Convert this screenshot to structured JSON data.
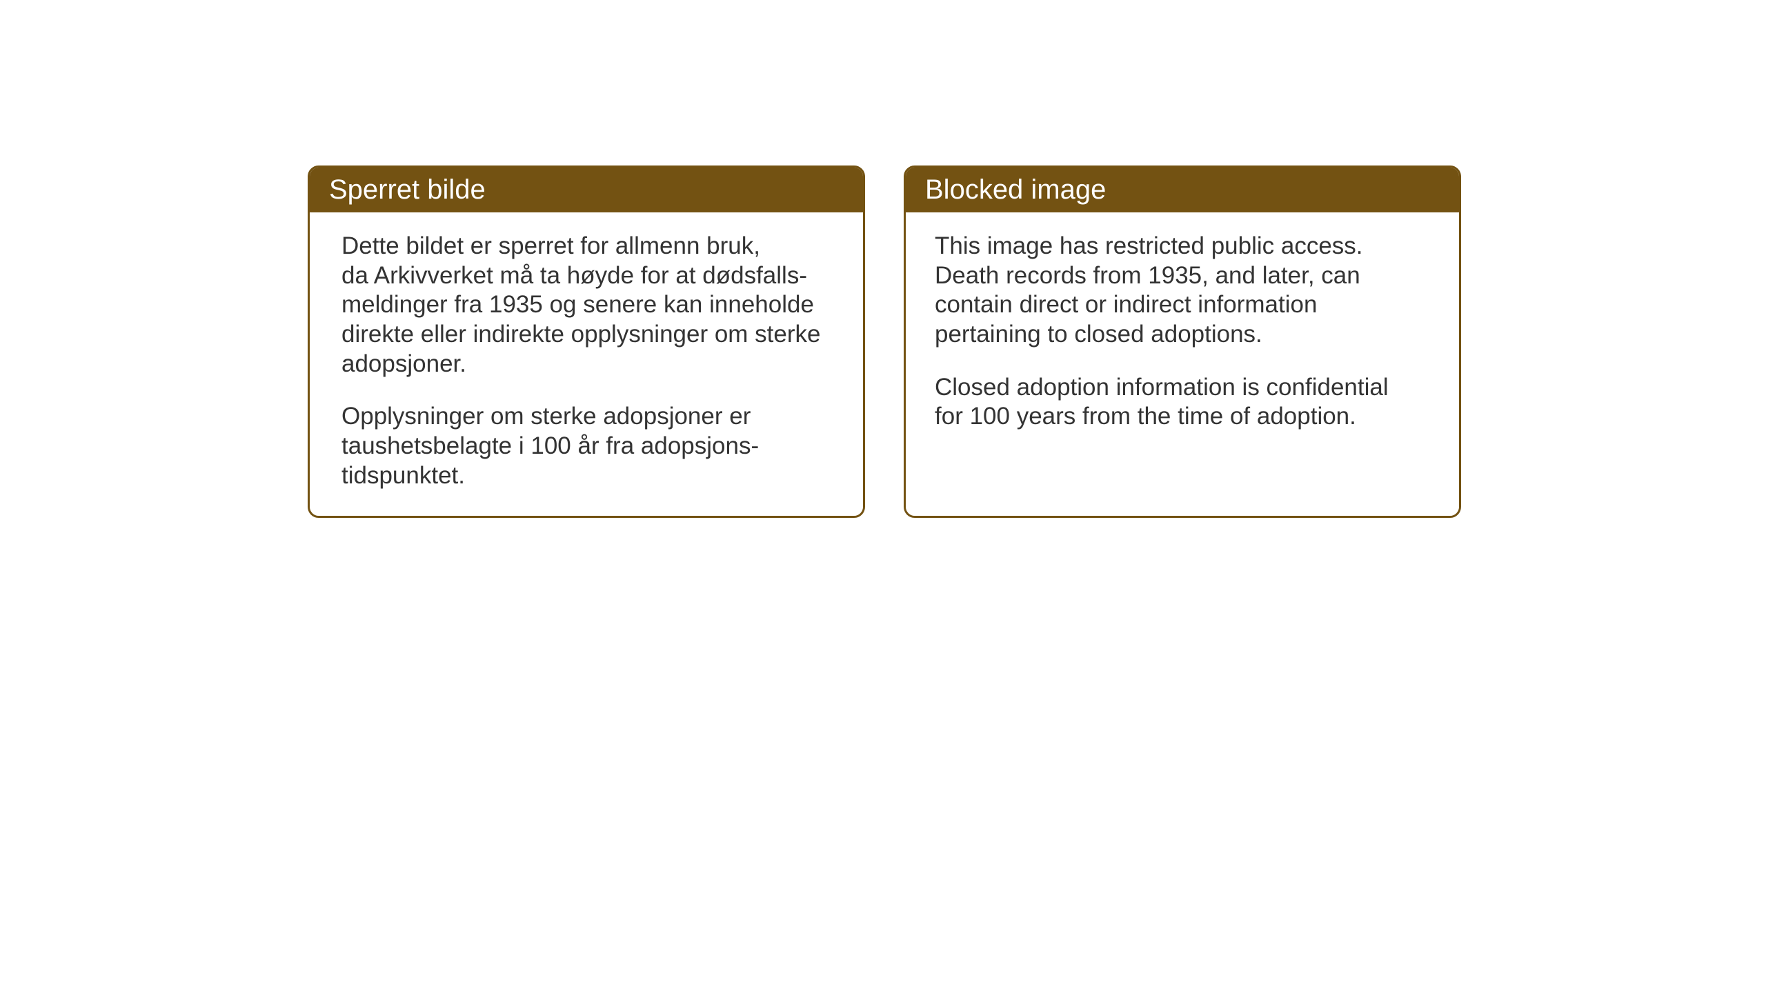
{
  "cards": {
    "norwegian": {
      "title": "Sperret bilde",
      "paragraph1": "Dette bildet er sperret for allmenn bruk,\nda Arkivverket må ta høyde for at dødsfalls-\nmeldinger fra 1935 og senere kan inneholde\ndirekte eller indirekte opplysninger om sterke\nadopsjoner.",
      "paragraph2": "Opplysninger om sterke adopsjoner er\ntaushetsbelagte i 100 år fra adopsjons-\ntidspunktet."
    },
    "english": {
      "title": "Blocked image",
      "paragraph1": "This image has restricted public access.\nDeath records from 1935, and later, can\ncontain direct or indirect information\npertaining to closed adoptions.",
      "paragraph2": "Closed adoption information is confidential\nfor 100 years from the time of adoption."
    }
  },
  "styling": {
    "header_background": "#735212",
    "header_text_color": "#ffffff",
    "border_color": "#735212",
    "body_text_color": "#333333",
    "card_background": "#ffffff",
    "page_background": "#ffffff",
    "header_fontsize": 40,
    "body_fontsize": 35,
    "border_radius": 16,
    "border_width": 3
  }
}
